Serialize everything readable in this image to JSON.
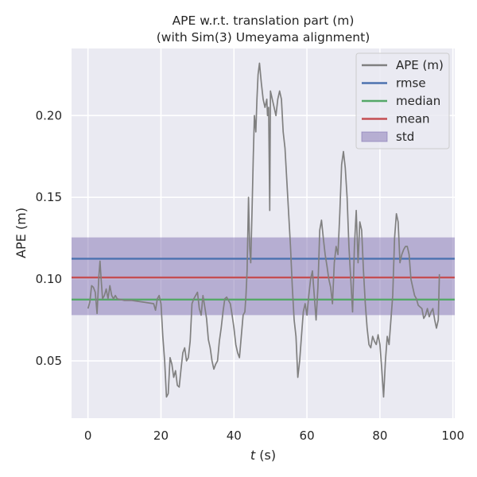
{
  "chart_data": {
    "type": "line",
    "title_lines": [
      "APE w.r.t. translation part (m)",
      "(with Sim(3) Umeyama alignment)"
    ],
    "xlabel_italic": "t",
    "xlabel_rest": " (s)",
    "ylabel": "APE (m)",
    "xlim": [
      -4.5,
      100.5
    ],
    "ylim": [
      0.015,
      0.241
    ],
    "x_ticks": [
      0,
      20,
      40,
      60,
      80,
      100
    ],
    "x_tick_labels": [
      "0",
      "20",
      "40",
      "60",
      "80",
      "100"
    ],
    "y_ticks": [
      0.05,
      0.1,
      0.15,
      0.2
    ],
    "y_tick_labels": [
      "0.05",
      "0.10",
      "0.15",
      "0.20"
    ],
    "grid": true,
    "legend_position": "top-right",
    "legend": [
      {
        "label": "APE (m)",
        "kind": "line",
        "color": "#808080"
      },
      {
        "label": "rmse",
        "kind": "line",
        "color": "#4c72b0"
      },
      {
        "label": "median",
        "kind": "line",
        "color": "#55a868"
      },
      {
        "label": "mean",
        "kind": "line",
        "color": "#c44e52"
      },
      {
        "label": "std",
        "kind": "patch",
        "color": "#8172b2"
      }
    ],
    "stats": {
      "rmse": 0.1125,
      "median": 0.0875,
      "mean": 0.101,
      "std_low": 0.078,
      "std_high": 0.1255
    },
    "series": [
      {
        "name": "APE (m)",
        "x": [
          0,
          0.5,
          1,
          1.5,
          2,
          2.5,
          3,
          3.3,
          3.6,
          4,
          4.5,
          5,
          5.5,
          6,
          6.5,
          7,
          7.5,
          8,
          10,
          12,
          15,
          18,
          18.5,
          19,
          19.5,
          20,
          20.5,
          21,
          21.5,
          22,
          22.5,
          23,
          23.5,
          24,
          24.5,
          25,
          25.5,
          26,
          26.5,
          27,
          27.5,
          28,
          28.5,
          29,
          29.5,
          30,
          30.5,
          31,
          31.5,
          32,
          32.5,
          33,
          33.5,
          34,
          34.5,
          35,
          35.5,
          36,
          36.5,
          37,
          37.5,
          38,
          38.5,
          39,
          39.5,
          40,
          40.5,
          41,
          41.5,
          42,
          42.5,
          43,
          43.3,
          43.6,
          44,
          44.3,
          44.6,
          45,
          45.3,
          45.6,
          46,
          46.3,
          46.6,
          47,
          47.5,
          48,
          48.5,
          49,
          49.2,
          49.5,
          49.8,
          50,
          50.5,
          51,
          51.5,
          52,
          52.5,
          53,
          53.5,
          54,
          54.5,
          55,
          55.5,
          56,
          56.5,
          57,
          57.5,
          58,
          58.5,
          59,
          59.5,
          60,
          60.5,
          61,
          61.5,
          62,
          62.5,
          63,
          63.5,
          64,
          64.5,
          65,
          65.5,
          66,
          66.5,
          67,
          67.5,
          68,
          68.5,
          69,
          69.5,
          70,
          70.5,
          71,
          71.5,
          72,
          72.5,
          73,
          73.5,
          74,
          74.5,
          75,
          75.5,
          76,
          76.5,
          77,
          77.5,
          78,
          78.5,
          79,
          79.5,
          80,
          80.5,
          81,
          81.5,
          82,
          82.5,
          83,
          83.5,
          84,
          84.5,
          85,
          85.5,
          86,
          86.5,
          87,
          87.5,
          88,
          88.5,
          89,
          89.5,
          90,
          90.5,
          91,
          91.5,
          92,
          92.5,
          93,
          93.5,
          94,
          94.5,
          95,
          95.5,
          96,
          96.3
        ],
        "y": [
          0.082,
          0.086,
          0.096,
          0.095,
          0.092,
          0.079,
          0.102,
          0.111,
          0.1,
          0.088,
          0.09,
          0.094,
          0.088,
          0.096,
          0.09,
          0.088,
          0.09,
          0.088,
          0.087,
          0.087,
          0.086,
          0.085,
          0.081,
          0.088,
          0.09,
          0.085,
          0.065,
          0.05,
          0.028,
          0.03,
          0.052,
          0.048,
          0.04,
          0.044,
          0.035,
          0.034,
          0.045,
          0.055,
          0.058,
          0.05,
          0.052,
          0.062,
          0.085,
          0.088,
          0.09,
          0.092,
          0.082,
          0.078,
          0.09,
          0.083,
          0.076,
          0.063,
          0.058,
          0.05,
          0.045,
          0.048,
          0.05,
          0.062,
          0.07,
          0.08,
          0.088,
          0.089,
          0.087,
          0.085,
          0.078,
          0.07,
          0.06,
          0.055,
          0.052,
          0.065,
          0.078,
          0.08,
          0.09,
          0.105,
          0.15,
          0.12,
          0.11,
          0.145,
          0.175,
          0.2,
          0.19,
          0.21,
          0.225,
          0.232,
          0.22,
          0.21,
          0.205,
          0.21,
          0.2,
          0.205,
          0.142,
          0.215,
          0.21,
          0.205,
          0.2,
          0.21,
          0.215,
          0.21,
          0.19,
          0.18,
          0.16,
          0.14,
          0.12,
          0.095,
          0.075,
          0.065,
          0.04,
          0.05,
          0.065,
          0.08,
          0.085,
          0.078,
          0.09,
          0.1,
          0.105,
          0.09,
          0.075,
          0.095,
          0.13,
          0.136,
          0.125,
          0.115,
          0.108,
          0.1,
          0.095,
          0.085,
          0.11,
          0.12,
          0.115,
          0.14,
          0.17,
          0.178,
          0.168,
          0.15,
          0.12,
          0.1,
          0.08,
          0.12,
          0.142,
          0.11,
          0.135,
          0.13,
          0.105,
          0.085,
          0.07,
          0.06,
          0.058,
          0.065,
          0.062,
          0.06,
          0.066,
          0.06,
          0.045,
          0.028,
          0.05,
          0.065,
          0.06,
          0.075,
          0.09,
          0.125,
          0.14,
          0.135,
          0.11,
          0.115,
          0.118,
          0.12,
          0.12,
          0.115,
          0.1,
          0.095,
          0.09,
          0.088,
          0.084,
          0.083,
          0.082,
          0.076,
          0.078,
          0.082,
          0.077,
          0.08,
          0.082,
          0.075,
          0.07,
          0.075,
          0.103
        ]
      }
    ]
  }
}
